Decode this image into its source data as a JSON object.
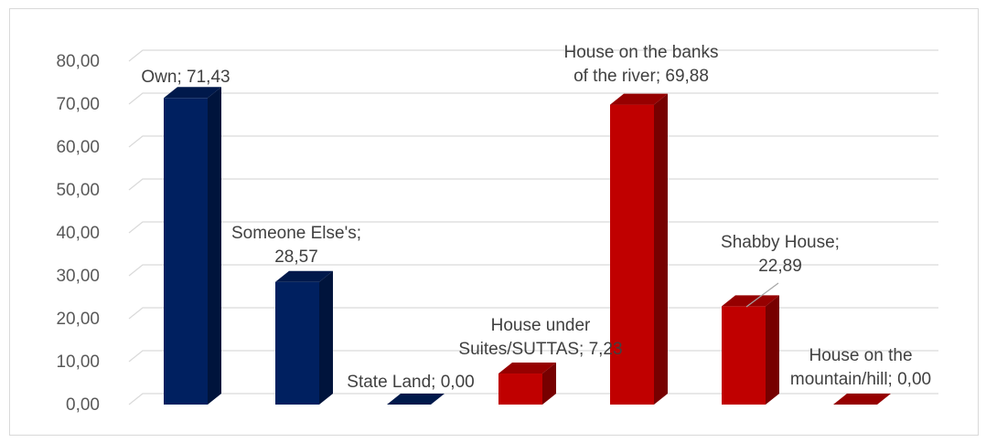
{
  "chart_data": {
    "type": "bar",
    "style": "3d-column",
    "categories": [
      "Own",
      "Someone Else's",
      "State Land",
      "House under Suites/SUTTAS",
      "House on the banks of the river",
      "Shabby House",
      "House on the mountain/hill"
    ],
    "values": [
      71.43,
      28.57,
      0.0,
      7.23,
      69.88,
      22.89,
      0.0
    ],
    "bar_colors": [
      "#002060",
      "#002060",
      "#002060",
      "#c00000",
      "#c00000",
      "#c00000",
      "#c00000"
    ],
    "data_labels": [
      [
        "Own; 71,43"
      ],
      [
        "Someone Else's;",
        "28,57"
      ],
      [
        "State Land; 0,00"
      ],
      [
        "House under",
        "Suites/SUTTAS; 7,23"
      ],
      [
        "House on the banks",
        "of the river; 69,88"
      ],
      [
        "Shabby House;",
        "22,89"
      ],
      [
        "House on the",
        "mountain/hill; 0,00"
      ]
    ],
    "y_tick_labels": [
      "0,00",
      "10,00",
      "20,00",
      "30,00",
      "40,00",
      "50,00",
      "60,00",
      "70,00",
      "80,00"
    ],
    "ylim": [
      0,
      80
    ],
    "ystep": 10,
    "grid": true,
    "legend": "none",
    "title": "",
    "xlabel": "",
    "ylabel": ""
  }
}
